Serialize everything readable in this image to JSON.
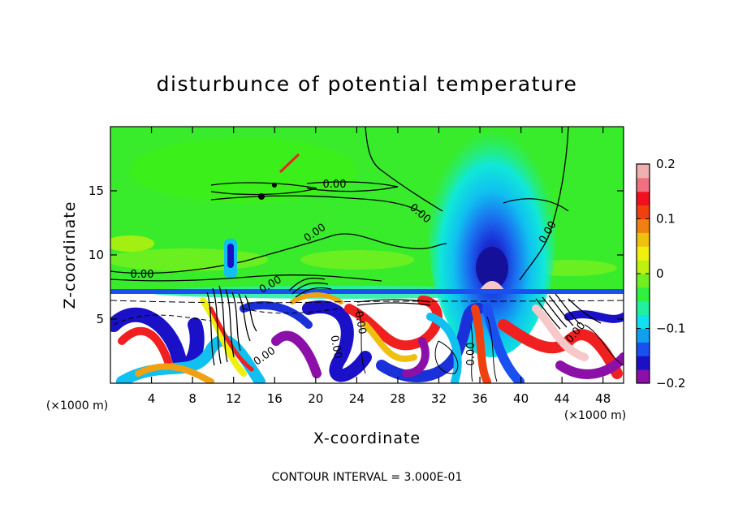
{
  "chart_data": {
    "type": "heatmap",
    "title": "disturbunce of potential temperature",
    "xlabel": "X-coordinate",
    "ylabel": "Z-coordinate",
    "x_unit": "(×1000 m)",
    "y_unit": "(×1000 m)",
    "xlim": [
      0,
      50
    ],
    "ylim": [
      0,
      20
    ],
    "x_ticks": [
      4,
      8,
      12,
      16,
      20,
      24,
      28,
      32,
      36,
      40,
      44,
      48
    ],
    "y_ticks": [
      5,
      10,
      15
    ],
    "colorbar": {
      "min": -0.2,
      "max": 0.2,
      "ticks": [
        {
          "value": 0.2,
          "label": "0.2"
        },
        {
          "value": 0.1,
          "label": "0.1"
        },
        {
          "value": 0,
          "label": "0"
        },
        {
          "value": -0.1,
          "label": "−0.1"
        },
        {
          "value": -0.2,
          "label": "−0.2"
        }
      ],
      "colors": [
        "#8c10a8",
        "#1a10c8",
        "#1a50f0",
        "#10a0f0",
        "#10e0f0",
        "#20f0a0",
        "#30f040",
        "#70f020",
        "#c0f010",
        "#f0f010",
        "#f0c010",
        "#f08010",
        "#f04010",
        "#f01020",
        "#f07080",
        "#f0b0b0"
      ]
    },
    "contour_interval_text": "CONTOUR INTERVAL = 3.000E-01",
    "contour_label": "0.00"
  }
}
